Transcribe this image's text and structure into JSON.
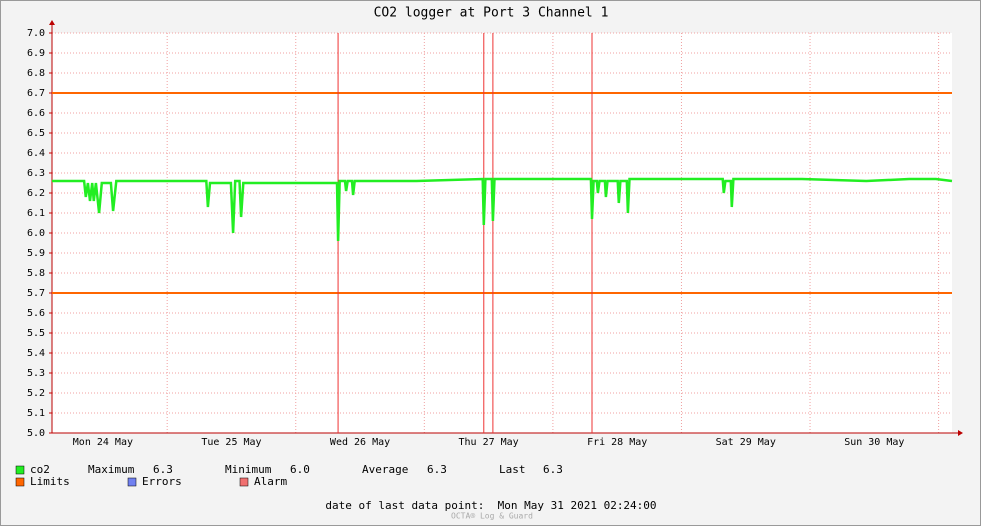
{
  "chart_data": {
    "type": "line",
    "title": "CO2 logger at Port 3 Channel 1",
    "xlim": [
      0,
      168
    ],
    "xticks": [
      {
        "value": 9.5,
        "label": "Mon 24 May"
      },
      {
        "value": 33.5,
        "label": "Tue 25 May"
      },
      {
        "value": 57.5,
        "label": "Wed 26 May"
      },
      {
        "value": 81.5,
        "label": "Thu 27 May"
      },
      {
        "value": 105.5,
        "label": "Fri 28 May"
      },
      {
        "value": 129.5,
        "label": "Sat 29 May"
      },
      {
        "value": 153.5,
        "label": "Sun 30 May"
      }
    ],
    "ylim": [
      5.0,
      7.0
    ],
    "yticks": [
      {
        "value": 5.0,
        "label": "5.0"
      },
      {
        "value": 5.1,
        "label": "5.1"
      },
      {
        "value": 5.2,
        "label": "5.2"
      },
      {
        "value": 5.3,
        "label": "5.3"
      },
      {
        "value": 5.4,
        "label": "5.4"
      },
      {
        "value": 5.5,
        "label": "5.5"
      },
      {
        "value": 5.6,
        "label": "5.6"
      },
      {
        "value": 5.7,
        "label": "5.7"
      },
      {
        "value": 5.8,
        "label": "5.8"
      },
      {
        "value": 5.9,
        "label": "5.9"
      },
      {
        "value": 6.0,
        "label": "6.0"
      },
      {
        "value": 6.1,
        "label": "6.1"
      },
      {
        "value": 6.2,
        "label": "6.2"
      },
      {
        "value": 6.3,
        "label": "6.3"
      },
      {
        "value": 6.4,
        "label": "6.4"
      },
      {
        "value": 6.5,
        "label": "6.5"
      },
      {
        "value": 6.6,
        "label": "6.6"
      },
      {
        "value": 6.7,
        "label": "6.7"
      },
      {
        "value": 6.8,
        "label": "6.8"
      },
      {
        "value": 6.9,
        "label": "6.9"
      },
      {
        "value": 7.0,
        "label": "7.0"
      }
    ],
    "grid": true,
    "series": [
      {
        "name": "co2",
        "color": "#22ee22",
        "x": [
          0,
          6.0,
          6.3,
          6.7,
          7.1,
          7.5,
          7.8,
          8.2,
          8.8,
          9.3,
          11.0,
          11.4,
          12.0,
          20,
          28.8,
          29.1,
          29.5,
          33.4,
          33.8,
          34.2,
          35.0,
          35.3,
          35.7,
          45,
          53.2,
          53.4,
          53.7,
          54.7,
          54.9,
          55.2,
          56.0,
          56.2,
          56.5,
          68,
          80.4,
          80.6,
          80.9,
          82.1,
          82.3,
          82.6,
          92,
          100.6,
          100.8,
          101.1,
          101.7,
          101.9,
          102.2,
          103.2,
          103.4,
          103.7,
          105.6,
          105.8,
          106.1,
          107.3,
          107.5,
          107.8,
          116,
          125.2,
          125.4,
          125.7,
          126.7,
          126.9,
          127.2,
          140,
          152,
          160,
          165,
          168
        ],
        "values": [
          6.26,
          6.26,
          6.18,
          6.25,
          6.16,
          6.25,
          6.16,
          6.25,
          6.1,
          6.25,
          6.25,
          6.11,
          6.26,
          6.26,
          6.26,
          6.13,
          6.25,
          6.25,
          6.0,
          6.26,
          6.26,
          6.08,
          6.25,
          6.25,
          6.25,
          5.96,
          6.26,
          6.26,
          6.21,
          6.26,
          6.26,
          6.19,
          6.26,
          6.26,
          6.27,
          6.04,
          6.27,
          6.27,
          6.06,
          6.27,
          6.27,
          6.27,
          6.07,
          6.26,
          6.26,
          6.2,
          6.26,
          6.26,
          6.18,
          6.26,
          6.26,
          6.15,
          6.26,
          6.26,
          6.1,
          6.27,
          6.27,
          6.27,
          6.2,
          6.26,
          6.26,
          6.13,
          6.27,
          6.27,
          6.26,
          6.27,
          6.27,
          6.26
        ]
      }
    ],
    "limits": [
      6.7,
      5.7
    ],
    "limit_color": "#ff6600",
    "alarms": [
      53.4,
      80.6,
      82.3,
      100.8
    ],
    "alarm_line_color": "#ee3333",
    "stats": [
      {
        "label": "Maximum",
        "value": "6.3"
      },
      {
        "label": "Minimum",
        "value": "6.0"
      },
      {
        "label": "Average",
        "value": "6.3"
      },
      {
        "label": "Last",
        "value": "6.3"
      }
    ],
    "legend": [
      {
        "name": "Limits",
        "color": "#ff6600"
      },
      {
        "name": "Errors",
        "color": "#7080f0"
      },
      {
        "name": "Alarm",
        "color": "#f07070"
      }
    ],
    "footer": "date of last data point:  Mon May 31 2021 02:24:00",
    "watermark": "OCTA® Log & Guard"
  }
}
